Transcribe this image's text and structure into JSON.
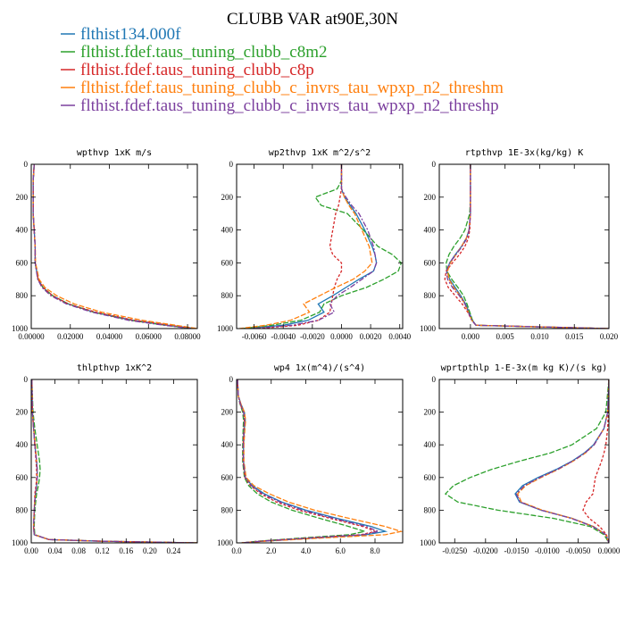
{
  "figure_title": "CLUBB VAR at90E,30N",
  "legend": [
    {
      "name": "flthist134.000f",
      "color": "#1f77b4"
    },
    {
      "name": "flthist.fdef.taus_tuning_clubb_c8m2",
      "color": "#2ca02c"
    },
    {
      "name": "flthist.fdef.taus_tuning_clubb_c8p",
      "color": "#d62728"
    },
    {
      "name": "flthist.fdef.taus_tuning_clubb_c_invrs_tau_wpxp_n2_threshm",
      "color": "#ff7f0e"
    },
    {
      "name": "flthist.fdef.taus_tuning_clubb_c_invrs_tau_wpxp_n2_threshp",
      "color": "#7b3f9e"
    }
  ],
  "chart_data": [
    {
      "type": "line",
      "title": "wpthvp  1xK m/s",
      "ylim": [
        1000,
        0
      ],
      "yticks": [
        0,
        200,
        400,
        600,
        800,
        1000
      ],
      "xlim": [
        0,
        0.085
      ],
      "xticks": [
        0,
        0.02,
        0.04,
        0.06,
        0.08
      ],
      "xtick_labels": [
        "0.00000",
        "0.02000",
        "0.04000",
        "0.06000",
        "0.08000"
      ],
      "y": [
        0,
        100,
        200,
        300,
        400,
        500,
        600,
        700,
        750,
        800,
        850,
        900,
        950,
        980,
        1000
      ],
      "series": [
        {
          "values": [
            0.0015,
            0.001,
            0.001,
            0.001,
            0.0015,
            0.002,
            0.002,
            0.0035,
            0.006,
            0.011,
            0.019,
            0.032,
            0.052,
            0.07,
            0.084
          ]
        },
        {
          "values": [
            0.0015,
            0.001,
            0.001,
            0.001,
            0.0015,
            0.002,
            0.002,
            0.0035,
            0.006,
            0.011,
            0.019,
            0.032,
            0.051,
            0.069,
            0.083
          ]
        },
        {
          "values": [
            0.0015,
            0.001,
            0.001,
            0.001,
            0.0015,
            0.002,
            0.002,
            0.0035,
            0.006,
            0.011,
            0.019,
            0.033,
            0.053,
            0.071,
            0.084
          ]
        },
        {
          "values": [
            0.0015,
            0.001,
            0.001,
            0.001,
            0.0015,
            0.002,
            0.0022,
            0.004,
            0.007,
            0.013,
            0.022,
            0.036,
            0.057,
            0.074,
            0.085
          ]
        },
        {
          "values": [
            0.0015,
            0.001,
            0.001,
            0.001,
            0.0015,
            0.002,
            0.002,
            0.0033,
            0.0055,
            0.01,
            0.018,
            0.031,
            0.05,
            0.068,
            0.082
          ]
        }
      ]
    },
    {
      "type": "line",
      "title": "wp2thvp  1xK m^2/s^2",
      "ylim": [
        1000,
        0
      ],
      "yticks": [
        0,
        200,
        400,
        600,
        800,
        1000
      ],
      "xlim": [
        -0.0072,
        0.0042
      ],
      "xticks": [
        -0.006,
        -0.004,
        -0.002,
        0,
        0.002,
        0.004
      ],
      "xtick_labels": [
        "-0.0060",
        "-0.0040",
        "-0.0020",
        "0.0000",
        "0.0020",
        "0.0040"
      ],
      "y": [
        0,
        100,
        150,
        200,
        250,
        300,
        400,
        500,
        550,
        600,
        650,
        700,
        750,
        800,
        850,
        900,
        950,
        980,
        1000
      ],
      "series": [
        {
          "values": [
            0.0,
            0.0,
            0.0,
            0.0002,
            0.0006,
            0.001,
            0.0016,
            0.0021,
            0.0023,
            0.0024,
            0.0022,
            0.0012,
            0.0003,
            -0.0006,
            -0.0016,
            -0.0012,
            -0.0023,
            -0.004,
            -0.0068
          ]
        },
        {
          "values": [
            0.0,
            0.0,
            -0.0003,
            -0.0018,
            -0.0014,
            0.0004,
            0.0015,
            0.0025,
            0.0035,
            0.0041,
            0.0039,
            0.0029,
            0.0017,
            0.0,
            -0.0012,
            -0.0015,
            -0.0028,
            -0.0048,
            -0.0068
          ]
        },
        {
          "values": [
            0.0,
            0.0,
            0.0,
            -0.0001,
            -0.0002,
            -0.0004,
            -0.0006,
            -0.0008,
            -0.0006,
            0.0,
            0.0,
            -0.0003,
            -0.0005,
            -0.0006,
            -0.0007,
            -0.0008,
            -0.0016,
            -0.003,
            -0.0058
          ]
        },
        {
          "values": [
            0.0,
            0.0,
            0.0,
            0.0002,
            0.0005,
            0.0009,
            0.0014,
            0.0019,
            0.002,
            0.0021,
            0.0016,
            0.0008,
            -0.0004,
            -0.0015,
            -0.0026,
            -0.0022,
            -0.0035,
            -0.0052,
            -0.007
          ]
        },
        {
          "values": [
            0.0,
            0.0,
            0.0,
            0.0003,
            0.0007,
            0.0012,
            0.0018,
            0.0022,
            0.0023,
            0.0024,
            0.0022,
            0.0014,
            0.0006,
            -0.0003,
            -0.0008,
            -0.0005,
            -0.0016,
            -0.0034,
            -0.0062
          ]
        }
      ]
    },
    {
      "type": "line",
      "title": "rtpthvp  1E-3x(kg/kg) K",
      "ylim": [
        1000,
        0
      ],
      "yticks": [
        0,
        200,
        400,
        600,
        800,
        1000
      ],
      "xlim": [
        -0.0045,
        0.02
      ],
      "xticks": [
        0,
        0.005,
        0.01,
        0.015,
        0.02
      ],
      "xtick_labels": [
        "0.000",
        "0.005",
        "0.010",
        "0.015",
        "0.020"
      ],
      "y": [
        0,
        200,
        300,
        400,
        450,
        500,
        550,
        600,
        650,
        700,
        750,
        800,
        850,
        900,
        950,
        980,
        1000
      ],
      "series": [
        {
          "values": [
            0.0,
            0.0,
            0.0,
            -0.0002,
            -0.0006,
            -0.0013,
            -0.0022,
            -0.003,
            -0.0034,
            -0.003,
            -0.0022,
            -0.0014,
            -0.0007,
            -0.0002,
            0.0003,
            0.0008,
            0.02
          ]
        },
        {
          "values": [
            0.0,
            0.0,
            -0.0001,
            -0.0008,
            -0.0015,
            -0.0024,
            -0.0031,
            -0.0035,
            -0.0034,
            -0.0027,
            -0.0018,
            -0.001,
            -0.0005,
            -0.0001,
            0.0003,
            0.0008,
            0.02
          ]
        },
        {
          "values": [
            0.0,
            0.0,
            0.0,
            -0.0001,
            -0.0003,
            -0.0008,
            -0.0016,
            -0.0026,
            -0.0035,
            -0.0037,
            -0.0032,
            -0.0022,
            -0.0012,
            -0.0004,
            0.0002,
            0.0008,
            0.02
          ]
        },
        {
          "values": [
            0.0,
            0.0,
            0.0,
            -0.0002,
            -0.0006,
            -0.0013,
            -0.0021,
            -0.0029,
            -0.0033,
            -0.0031,
            -0.0024,
            -0.0015,
            -0.0008,
            -0.0003,
            0.0002,
            0.0008,
            0.02
          ]
        },
        {
          "values": [
            0.0,
            0.0,
            0.0,
            -0.0002,
            -0.0005,
            -0.0012,
            -0.0021,
            -0.003,
            -0.0035,
            -0.0033,
            -0.0026,
            -0.0016,
            -0.0008,
            -0.0003,
            0.0002,
            0.0008,
            0.02
          ]
        }
      ]
    },
    {
      "type": "line",
      "title": "thlpthvp  1xK^2",
      "ylim": [
        1000,
        0
      ],
      "yticks": [
        0,
        200,
        400,
        600,
        800,
        1000
      ],
      "xlim": [
        0,
        0.28
      ],
      "xticks": [
        0,
        0.04,
        0.08,
        0.12,
        0.16,
        0.2,
        0.24
      ],
      "xtick_labels": [
        "0.00",
        "0.04",
        "0.08",
        "0.12",
        "0.16",
        "0.20",
        "0.24"
      ],
      "y": [
        0,
        200,
        300,
        400,
        500,
        550,
        600,
        650,
        700,
        800,
        900,
        950,
        980,
        990,
        1000
      ],
      "series": [
        {
          "values": [
            0.001,
            0.002,
            0.004,
            0.006,
            0.009,
            0.01,
            0.01,
            0.009,
            0.007,
            0.005,
            0.004,
            0.005,
            0.03,
            0.12,
            0.28
          ]
        },
        {
          "values": [
            0.001,
            0.003,
            0.006,
            0.01,
            0.014,
            0.015,
            0.014,
            0.012,
            0.009,
            0.006,
            0.005,
            0.006,
            0.03,
            0.12,
            0.28
          ]
        },
        {
          "values": [
            0.001,
            0.002,
            0.004,
            0.006,
            0.008,
            0.009,
            0.009,
            0.008,
            0.006,
            0.005,
            0.004,
            0.005,
            0.03,
            0.12,
            0.28
          ]
        },
        {
          "values": [
            0.001,
            0.002,
            0.004,
            0.007,
            0.009,
            0.01,
            0.01,
            0.009,
            0.007,
            0.005,
            0.004,
            0.005,
            0.03,
            0.12,
            0.28
          ]
        },
        {
          "values": [
            0.001,
            0.002,
            0.004,
            0.006,
            0.009,
            0.01,
            0.01,
            0.009,
            0.007,
            0.005,
            0.004,
            0.005,
            0.03,
            0.12,
            0.28
          ]
        }
      ]
    },
    {
      "type": "line",
      "title": "wp4  1x(m^4)/(s^4)",
      "ylim": [
        1000,
        0
      ],
      "yticks": [
        0,
        200,
        400,
        600,
        800,
        1000
      ],
      "xlim": [
        0,
        9.6
      ],
      "xticks": [
        0,
        2,
        4,
        6,
        8
      ],
      "xtick_labels": [
        "0.0",
        "2.0",
        "4.0",
        "6.0",
        "8.0"
      ],
      "y": [
        0,
        100,
        150,
        200,
        250,
        300,
        400,
        500,
        600,
        650,
        700,
        750,
        800,
        850,
        900,
        930,
        950,
        970,
        990,
        1000
      ],
      "series": [
        {
          "values": [
            0.05,
            0.1,
            0.25,
            0.45,
            0.5,
            0.45,
            0.4,
            0.4,
            0.5,
            0.9,
            1.6,
            2.6,
            4.0,
            5.8,
            7.8,
            8.6,
            7.5,
            4.5,
            1.5,
            0.3
          ]
        },
        {
          "values": [
            0.05,
            0.1,
            0.2,
            0.35,
            0.4,
            0.38,
            0.35,
            0.35,
            0.45,
            0.7,
            1.2,
            2.0,
            3.2,
            4.8,
            6.5,
            7.4,
            6.5,
            3.8,
            1.2,
            0.3
          ]
        },
        {
          "values": [
            0.05,
            0.1,
            0.2,
            0.4,
            0.45,
            0.42,
            0.38,
            0.38,
            0.48,
            0.8,
            1.4,
            2.3,
            3.6,
            5.4,
            7.3,
            8.0,
            7.2,
            4.2,
            1.3,
            0.3
          ]
        },
        {
          "values": [
            0.05,
            0.1,
            0.25,
            0.45,
            0.52,
            0.48,
            0.42,
            0.42,
            0.55,
            1.0,
            1.9,
            3.0,
            4.5,
            6.5,
            8.6,
            9.5,
            8.6,
            5.0,
            1.6,
            0.3
          ]
        },
        {
          "values": [
            0.05,
            0.1,
            0.22,
            0.4,
            0.46,
            0.43,
            0.39,
            0.39,
            0.5,
            0.85,
            1.5,
            2.5,
            3.8,
            5.6,
            7.5,
            8.2,
            7.3,
            4.3,
            1.4,
            0.3
          ]
        }
      ]
    },
    {
      "type": "line",
      "title": "wprtpthlp  1-E-3x(m kg K)/(s kg)",
      "ylim": [
        1000,
        0
      ],
      "yticks": [
        0,
        200,
        400,
        600,
        800,
        1000
      ],
      "xlim": [
        -0.0275,
        0
      ],
      "xticks": [
        -0.025,
        -0.02,
        -0.015,
        -0.01,
        -0.005,
        0
      ],
      "xtick_labels": [
        "-0.0250",
        "-0.0200",
        "-0.0150",
        "-0.0100",
        "-0.0050",
        "0.0000"
      ],
      "y": [
        0,
        200,
        300,
        400,
        450,
        500,
        550,
        600,
        650,
        700,
        750,
        800,
        850,
        900,
        950,
        1000
      ],
      "series": [
        {
          "values": [
            0.0,
            -0.0002,
            -0.0008,
            -0.0025,
            -0.004,
            -0.006,
            -0.0085,
            -0.0115,
            -0.014,
            -0.0152,
            -0.0145,
            -0.011,
            -0.006,
            -0.0025,
            -0.0005,
            0.0
          ]
        },
        {
          "values": [
            0.0,
            -0.0005,
            -0.002,
            -0.006,
            -0.0095,
            -0.0145,
            -0.019,
            -0.0225,
            -0.0252,
            -0.0265,
            -0.0245,
            -0.018,
            -0.009,
            -0.003,
            -0.0008,
            0.0
          ]
        },
        {
          "values": [
            0.0,
            -0.0001,
            -0.0002,
            -0.0005,
            -0.0008,
            -0.0012,
            -0.0017,
            -0.0022,
            -0.0024,
            -0.0026,
            -0.0037,
            -0.0042,
            -0.0032,
            -0.0015,
            -0.0004,
            0.0
          ]
        },
        {
          "values": [
            0.0,
            -0.0002,
            -0.0008,
            -0.0024,
            -0.0038,
            -0.0058,
            -0.0082,
            -0.011,
            -0.0135,
            -0.0148,
            -0.0142,
            -0.0108,
            -0.006,
            -0.0025,
            -0.0005,
            0.0
          ]
        },
        {
          "values": [
            0.0,
            -0.0002,
            -0.0008,
            -0.0024,
            -0.0039,
            -0.0059,
            -0.0083,
            -0.0112,
            -0.0137,
            -0.015,
            -0.0144,
            -0.011,
            -0.0061,
            -0.0026,
            -0.0005,
            0.0
          ]
        }
      ]
    }
  ]
}
